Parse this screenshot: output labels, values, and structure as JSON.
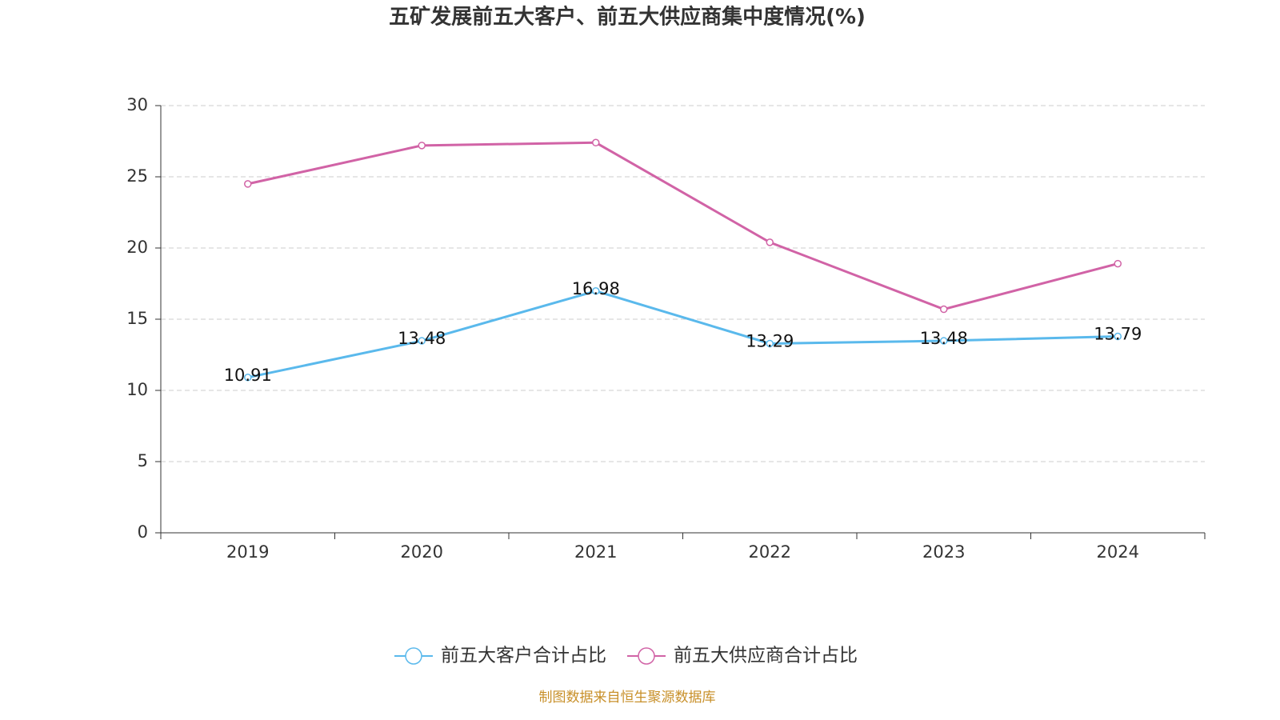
{
  "chart_data": {
    "type": "line",
    "title": "五矿发展前五大客户、前五大供应商集中度情况(%)",
    "categories": [
      "2019",
      "2020",
      "2021",
      "2022",
      "2023",
      "2024"
    ],
    "series": [
      {
        "name": "前五大客户合计占比",
        "color": "#5ab9ec",
        "values": [
          10.91,
          13.48,
          16.98,
          13.29,
          13.48,
          13.79
        ],
        "show_labels": true
      },
      {
        "name": "前五大供应商合计占比",
        "color": "#d163a6",
        "values": [
          24.5,
          27.2,
          27.4,
          20.4,
          15.7,
          18.9
        ],
        "show_labels": false
      }
    ],
    "ylim": [
      0,
      30
    ],
    "yticks": [
      0,
      5,
      10,
      15,
      20,
      25,
      30
    ],
    "grid": true,
    "legend": "bottom",
    "source": "制图数据来自恒生聚源数据库"
  }
}
